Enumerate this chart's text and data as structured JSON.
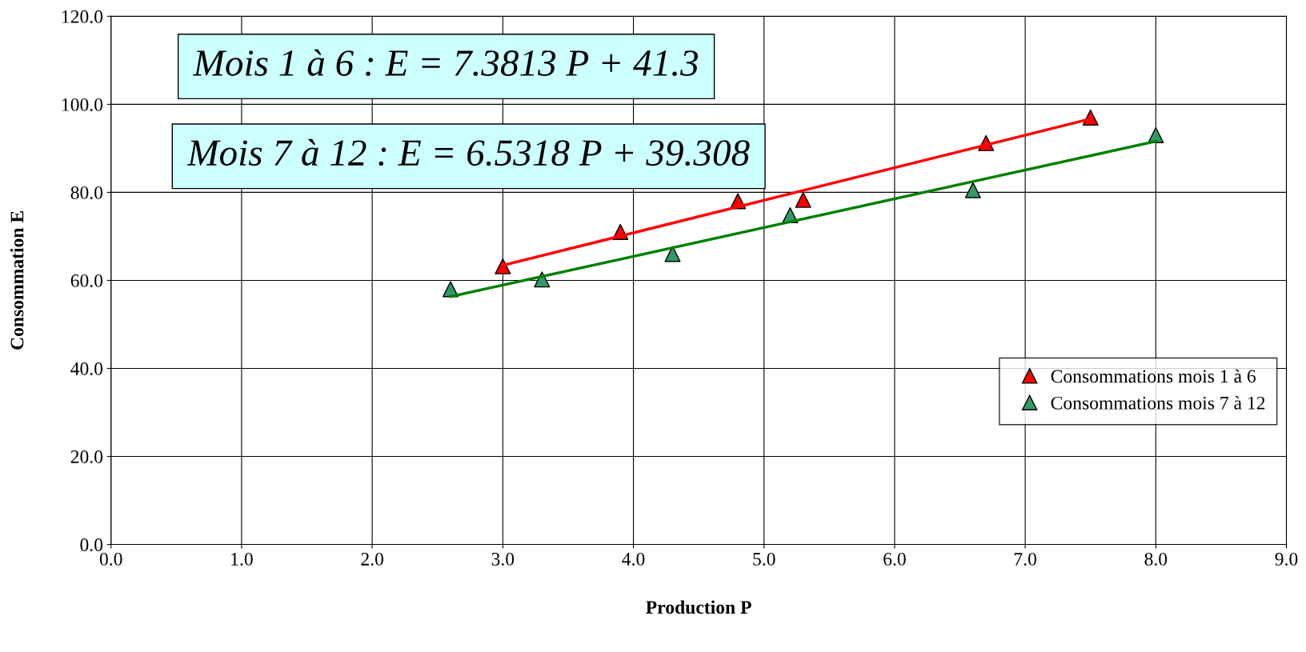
{
  "chart_data": {
    "type": "scatter",
    "xlabel": "Production P",
    "ylabel": "Consommation E",
    "annotations": [
      "Mois 1 à 6 : E = 7.3813 P + 41.3",
      "Mois 7 à 12 : E = 6.5318 P + 39.308"
    ],
    "series": [
      {
        "name": "Consommations mois 1 à 6",
        "color": "#ff0000",
        "x": [
          3.0,
          3.9,
          4.8,
          5.3,
          6.7,
          7.5
        ],
        "values": [
          63.2,
          71.0,
          78.0,
          78.3,
          91.2,
          97.0
        ]
      },
      {
        "name": "Consommations mois 7 à 12",
        "color": "#339966",
        "x": [
          2.6,
          3.3,
          4.3,
          5.2,
          6.6,
          8.0
        ],
        "values": [
          58.0,
          60.2,
          66.0,
          74.8,
          80.5,
          93.0
        ]
      },
      {
        "type": "line",
        "marker": "none",
        "color": "#ff0000",
        "x": [
          3.0,
          7.5
        ],
        "values": [
          63.4,
          96.7
        ]
      },
      {
        "type": "line",
        "marker": "none",
        "color": "#008000",
        "x": [
          2.6,
          8.0
        ],
        "values": [
          56.3,
          91.6
        ]
      }
    ],
    "xlim": [
      0,
      9
    ],
    "ylim": [
      0,
      120
    ],
    "xticks": [
      {
        "value": 0,
        "label": "0.0"
      },
      {
        "value": 1,
        "label": "1.0"
      },
      {
        "value": 2,
        "label": "2.0"
      },
      {
        "value": 3,
        "label": "3.0"
      },
      {
        "value": 4,
        "label": "4.0"
      },
      {
        "value": 5,
        "label": "5.0"
      },
      {
        "value": 6,
        "label": "6.0"
      },
      {
        "value": 7,
        "label": "7.0"
      },
      {
        "value": 8,
        "label": "8.0"
      },
      {
        "value": 9,
        "label": "9.0"
      }
    ],
    "yticks": [
      {
        "value": 0,
        "label": "0.0"
      },
      {
        "value": 20,
        "label": "20.0"
      },
      {
        "value": 40,
        "label": "40.0"
      },
      {
        "value": 60,
        "label": "60.0"
      },
      {
        "value": 80,
        "label": "80.0"
      },
      {
        "value": 100,
        "label": "100.0"
      },
      {
        "value": 120,
        "label": "120.0"
      }
    ],
    "grid": true,
    "legend": "right",
    "marker": "triangle",
    "line_style": "solid"
  }
}
